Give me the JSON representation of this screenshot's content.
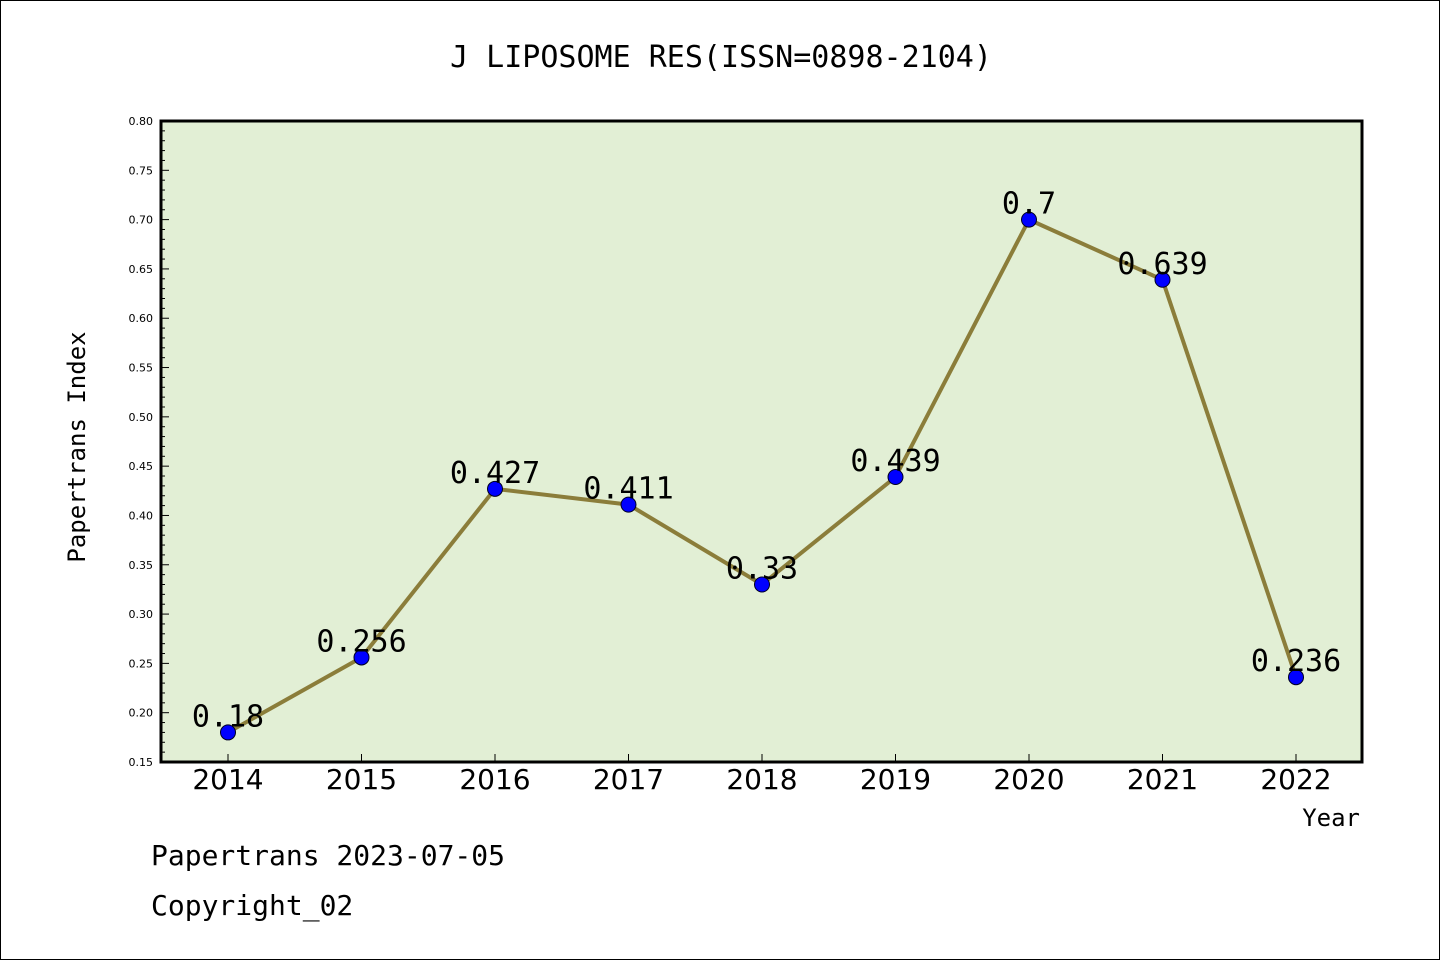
{
  "chart_data": {
    "type": "line",
    "title": "J LIPOSOME RES(ISSN=0898-2104)",
    "xlabel": "Year",
    "ylabel": "Papertrans Index",
    "categories": [
      "2014",
      "2015",
      "2016",
      "2017",
      "2018",
      "2019",
      "2020",
      "2021",
      "2022"
    ],
    "values": [
      0.18,
      0.256,
      0.427,
      0.411,
      0.33,
      0.439,
      0.7,
      0.639,
      0.236
    ],
    "data_labels": [
      "0.18",
      "0.256",
      "0.427",
      "0.411",
      "0.33",
      "0.439",
      "0.7",
      "0.639",
      "0.236"
    ],
    "ylim": [
      0.15,
      0.8
    ],
    "yticks": [
      "0.15",
      "0.20",
      "0.25",
      "0.30",
      "0.35",
      "0.40",
      "0.45",
      "0.50",
      "0.55",
      "0.60",
      "0.65",
      "0.70",
      "0.75",
      "0.80"
    ],
    "grid": false,
    "colors": {
      "plot_background": "#e2efd5",
      "line": "#8b7d3a",
      "marker": "#0000ff"
    }
  },
  "footer": {
    "line1": "Papertrans 2023-07-05",
    "line2": "Copyright_02"
  }
}
